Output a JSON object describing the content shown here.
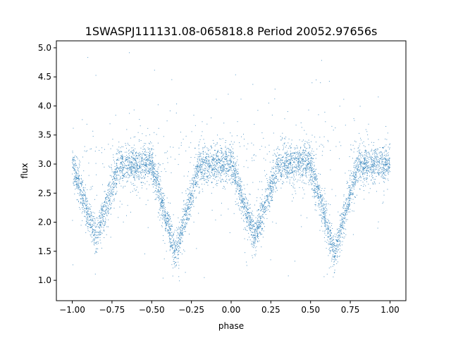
{
  "chart_data": {
    "type": "scatter",
    "title": "1SWASPJ111131.08-065818.8 Period 20052.97656s",
    "xlabel": "phase",
    "ylabel": "flux",
    "xlim": [
      -1.1,
      1.1
    ],
    "ylim": [
      0.65,
      5.12
    ],
    "xticks": [
      -1.0,
      -0.75,
      -0.5,
      -0.25,
      0.0,
      0.25,
      0.5,
      0.75,
      1.0
    ],
    "xtick_labels": [
      "−1.00",
      "−0.75",
      "−0.50",
      "−0.25",
      "0.00",
      "0.25",
      "0.50",
      "0.75",
      "1.00"
    ],
    "yticks": [
      1.0,
      1.5,
      2.0,
      2.5,
      3.0,
      3.5,
      4.0,
      4.5,
      5.0
    ],
    "ytick_labels": [
      "1.0",
      "1.5",
      "2.0",
      "2.5",
      "3.0",
      "3.5",
      "4.0",
      "4.5",
      "5.0"
    ],
    "grid": false,
    "legend": "none",
    "marker_color": "#1f77b4",
    "x_range": [
      -1.0,
      1.0
    ],
    "baseline_flux": 3.0,
    "baseline_scatter": 0.15,
    "eclipses": [
      {
        "phase_center": -0.85,
        "phase_halfwidth": 0.15,
        "min_flux": 1.75
      },
      {
        "phase_center": -0.35,
        "phase_halfwidth": 0.15,
        "min_flux": 1.45
      },
      {
        "phase_center": 0.15,
        "phase_halfwidth": 0.15,
        "min_flux": 1.75
      },
      {
        "phase_center": 0.65,
        "phase_halfwidth": 0.15,
        "min_flux": 1.45
      }
    ]
  }
}
